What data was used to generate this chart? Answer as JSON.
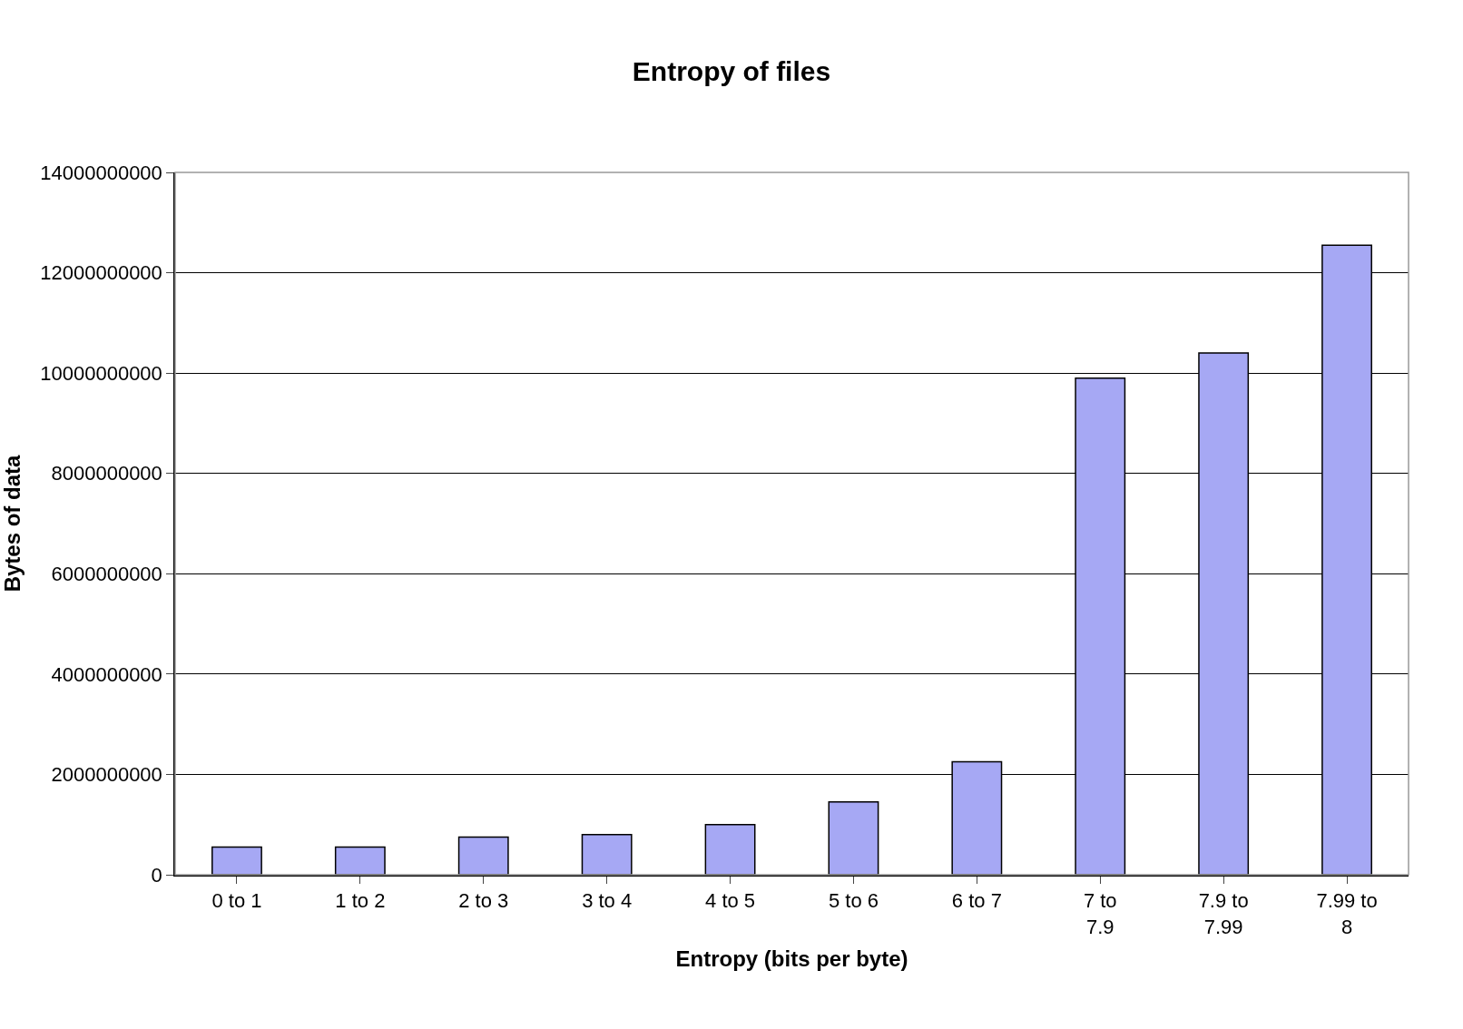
{
  "chart_data": {
    "type": "bar",
    "title": "Entropy of files",
    "xlabel": "Entropy (bits per byte)",
    "ylabel": "Bytes of data",
    "categories": [
      "0 to 1",
      "1 to 2",
      "2 to 3",
      "3 to 4",
      "4 to 5",
      "5 to 6",
      "6 to 7",
      "7 to 7.9",
      "7.9 to 7.99",
      "7.99 to 8"
    ],
    "values": [
      550000000,
      550000000,
      750000000,
      800000000,
      1000000000,
      1450000000,
      2250000000,
      9900000000,
      10400000000,
      12550000000
    ],
    "color": "#a6a8f4",
    "ylim": [
      0,
      14000000000
    ],
    "yticks": [
      0,
      2000000000,
      4000000000,
      6000000000,
      8000000000,
      10000000000,
      12000000000,
      14000000000
    ],
    "grid": "y",
    "legend": false
  }
}
